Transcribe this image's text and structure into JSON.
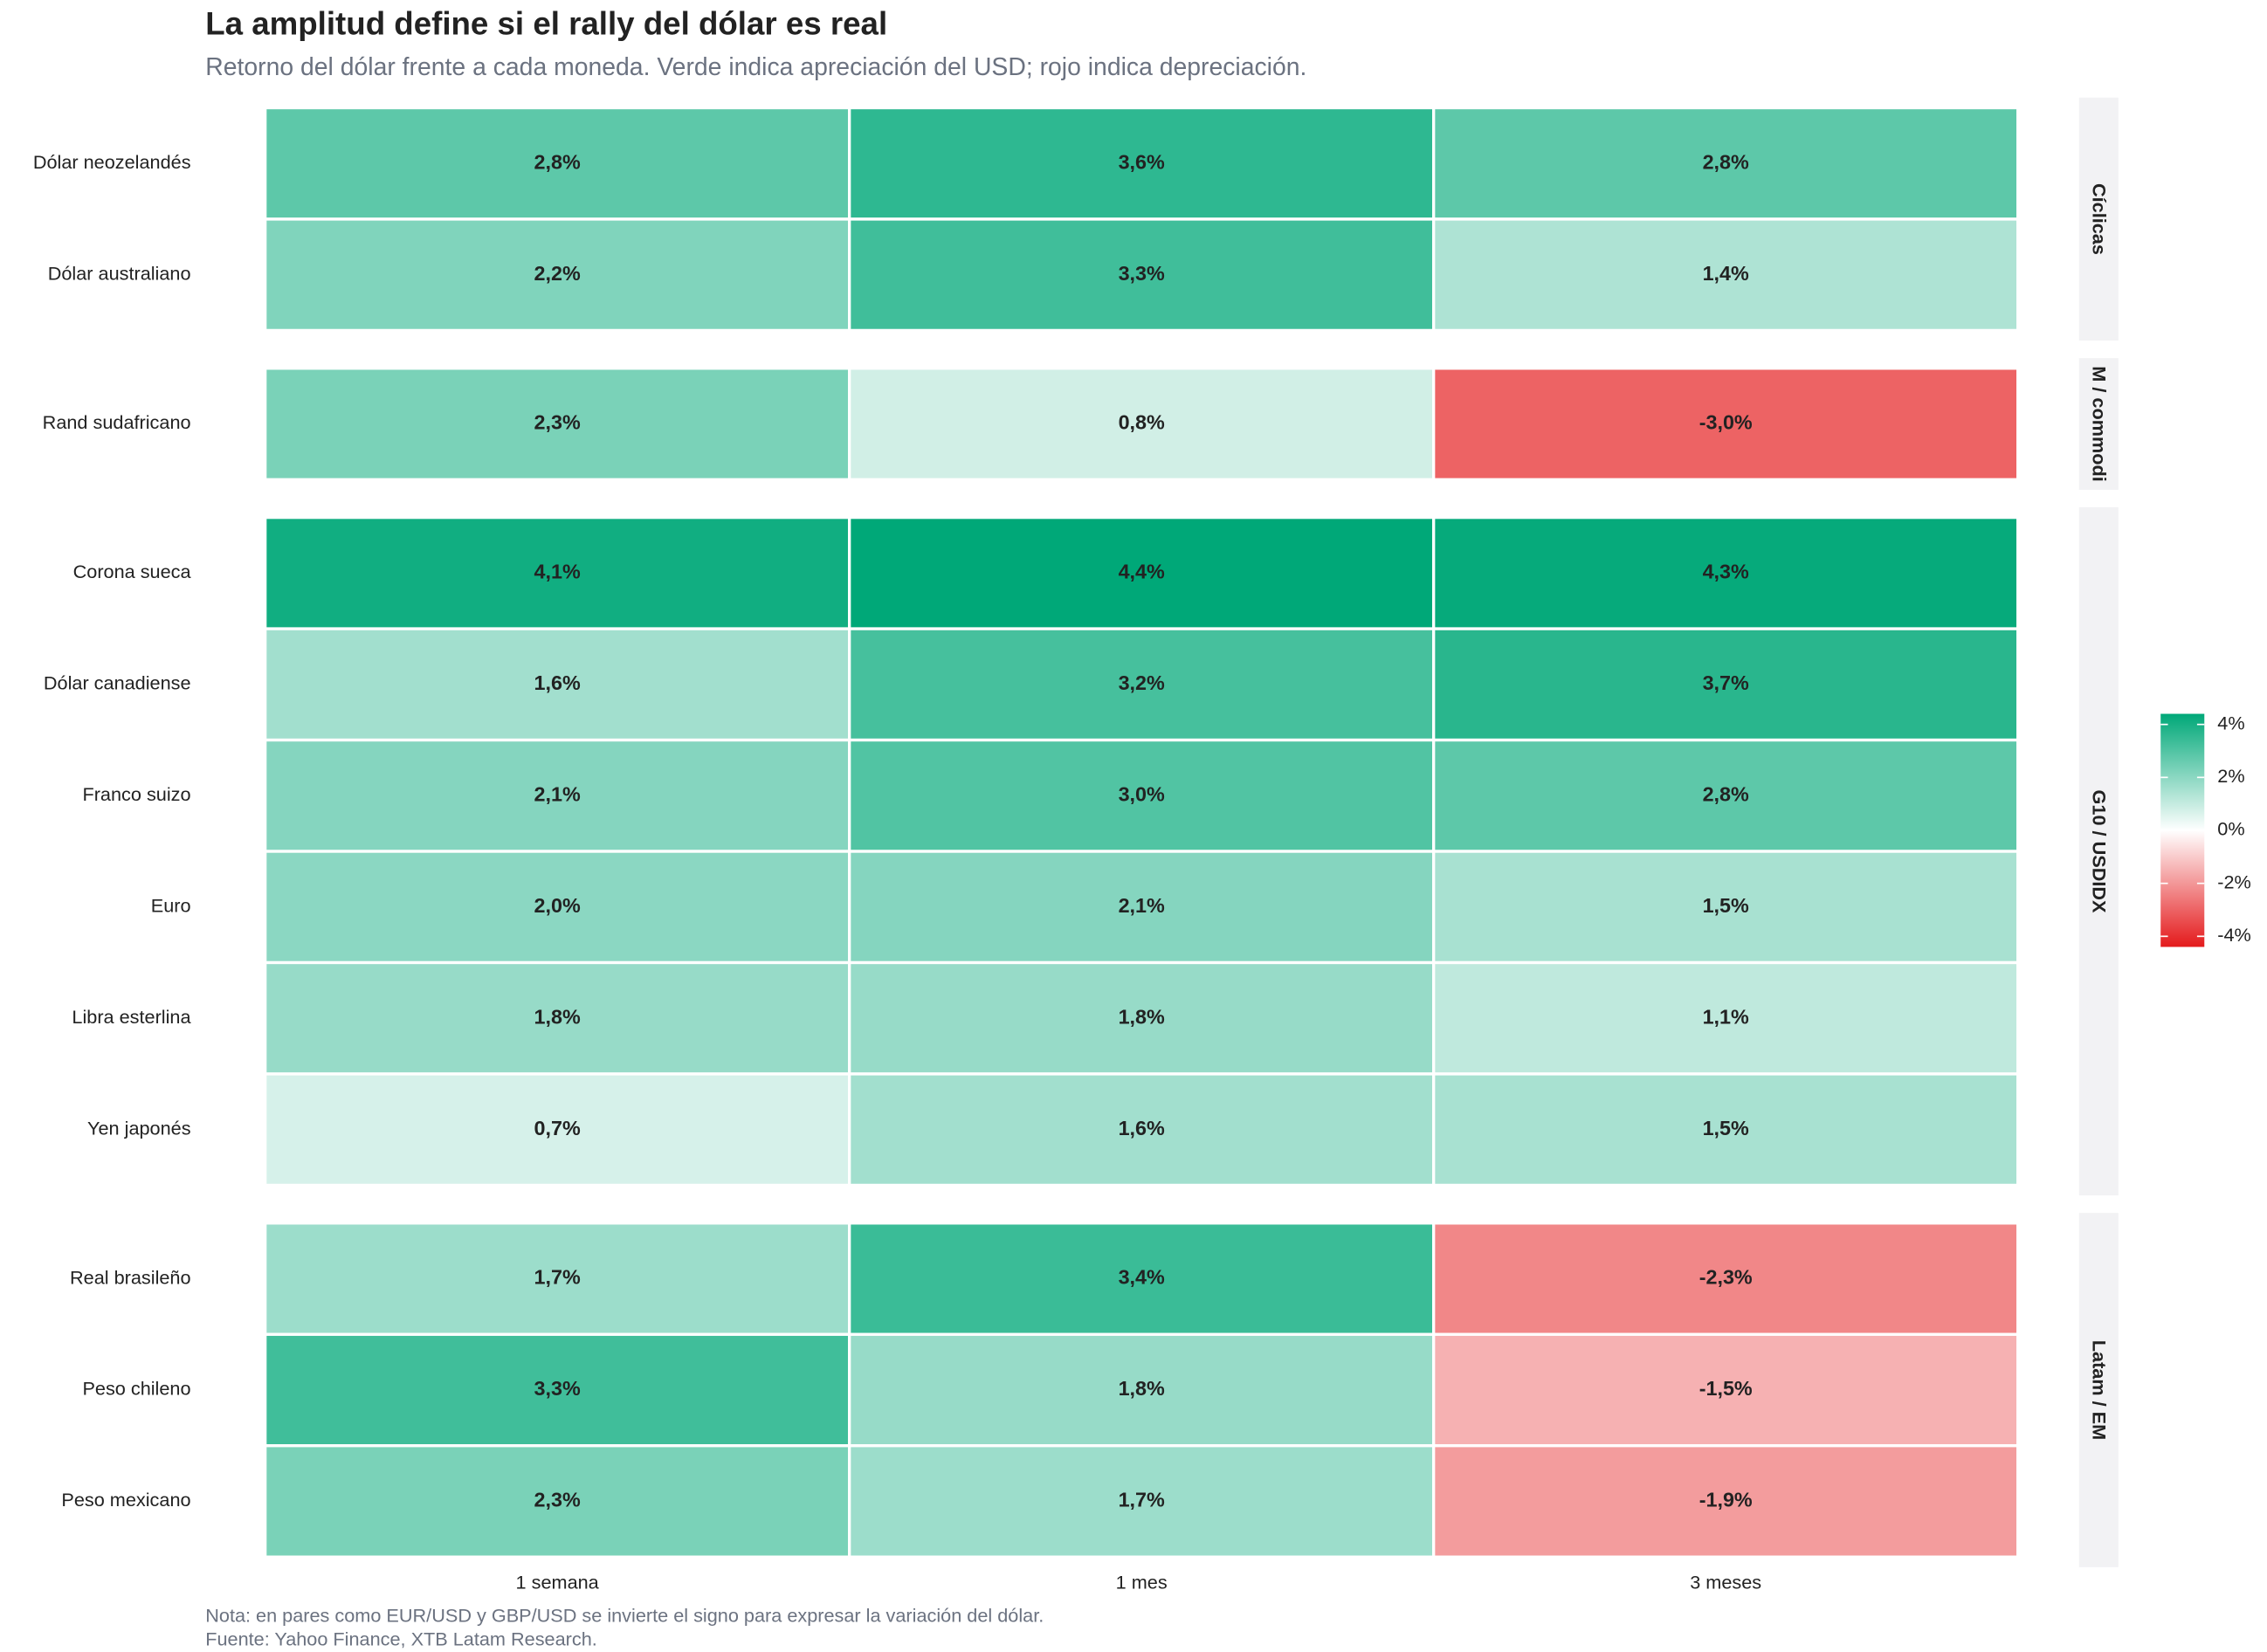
{
  "chart_data": {
    "type": "heatmap",
    "title": "La amplitud define si el rally del dólar es real",
    "subtitle": "Retorno del dólar frente a cada moneda. Verde indica apreciación del USD; rojo indica depreciación.",
    "notes": [
      "Nota: en pares como EUR/USD y GBP/USD se invierte el signo para expresar la variación del dólar.",
      "Fuente: Yahoo Finance, XTB Latam Research."
    ],
    "columns": [
      "1 semana",
      "1 mes",
      "3 meses"
    ],
    "groups": [
      {
        "name": "Cíclicas",
        "rows": [
          "Dólar neozelandés",
          "Dólar australiano"
        ],
        "values": [
          [
            2.8,
            3.6,
            2.8
          ],
          [
            2.2,
            3.3,
            1.4
          ]
        ],
        "value_labels": [
          [
            "2,8%",
            "3,6%",
            "2,8%"
          ],
          [
            "2,2%",
            "3,3%",
            "1,4%"
          ]
        ]
      },
      {
        "name": "M / commodi",
        "rows": [
          "Rand sudafricano"
        ],
        "values": [
          [
            2.3,
            0.8,
            -3.0
          ]
        ],
        "value_labels": [
          [
            "2,3%",
            "0,8%",
            "-3,0%"
          ]
        ]
      },
      {
        "name": "G10 / USDIDX",
        "rows": [
          "Corona sueca",
          "Dólar canadiense",
          "Franco suizo",
          "Euro",
          "Libra esterlina",
          "Yen japonés"
        ],
        "values": [
          [
            4.1,
            4.4,
            4.3
          ],
          [
            1.6,
            3.2,
            3.7
          ],
          [
            2.1,
            3.0,
            2.8
          ],
          [
            2.0,
            2.1,
            1.5
          ],
          [
            1.8,
            1.8,
            1.1
          ],
          [
            0.7,
            1.6,
            1.5
          ]
        ],
        "value_labels": [
          [
            "4,1%",
            "4,4%",
            "4,3%"
          ],
          [
            "1,6%",
            "3,2%",
            "3,7%"
          ],
          [
            "2,1%",
            "3,0%",
            "2,8%"
          ],
          [
            "2,0%",
            "2,1%",
            "1,5%"
          ],
          [
            "1,8%",
            "1,8%",
            "1,1%"
          ],
          [
            "0,7%",
            "1,6%",
            "1,5%"
          ]
        ]
      },
      {
        "name": "Latam / EM",
        "rows": [
          "Real brasileño",
          "Peso chileno",
          "Peso mexicano"
        ],
        "values": [
          [
            1.7,
            3.4,
            -2.3
          ],
          [
            3.3,
            1.8,
            -1.5
          ],
          [
            2.3,
            1.7,
            -1.9
          ]
        ],
        "value_labels": [
          [
            "1,7%",
            "3,4%",
            "-2,3%"
          ],
          [
            "3,3%",
            "1,8%",
            "-1,5%"
          ],
          [
            "2,3%",
            "1,7%",
            "-1,9%"
          ]
        ]
      }
    ],
    "colors": {
      "low": "#e41a1c",
      "mid": "#ffffff",
      "high": "#00a878"
    },
    "clim": [
      -4.4,
      4.4
    ],
    "cticks": [
      {
        "value": 4,
        "label": "4%"
      },
      {
        "value": 2,
        "label": "2%"
      },
      {
        "value": 0,
        "label": "0%"
      },
      {
        "value": -2,
        "label": "-2%"
      },
      {
        "value": -4,
        "label": "-4%"
      }
    ]
  }
}
